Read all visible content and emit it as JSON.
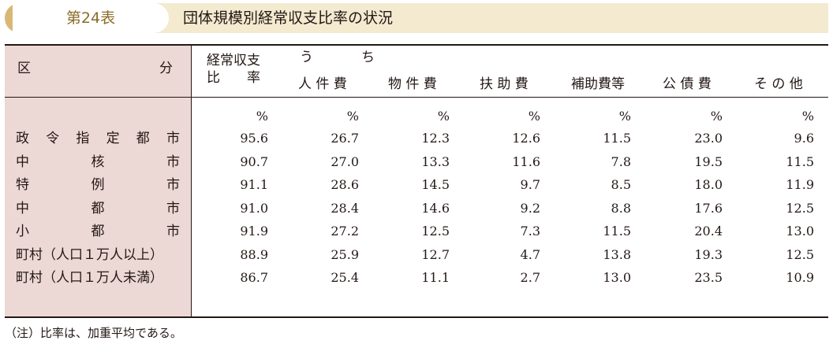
{
  "title": {
    "table_no": "第24表",
    "text": "団体規模別経常収支比率の状況"
  },
  "header": {
    "ku": "区",
    "bun": "分",
    "ratio_line1": "経常収支",
    "ratio_line2_a": "比",
    "ratio_line2_b": "率",
    "uchi_a": "う",
    "uchi_b": "ち",
    "columns": [
      "人 件 費",
      "物 件 費",
      "扶 助 費",
      "補助費等",
      "公 債 費",
      "そ の 他"
    ]
  },
  "unit": "%",
  "rows": [
    {
      "label": [
        "政",
        "令",
        "指",
        "定",
        "都",
        "市"
      ],
      "values": [
        "95.6",
        "26.7",
        "12.3",
        "12.6",
        "11.5",
        "23.0",
        "9.6"
      ]
    },
    {
      "label": [
        "中",
        "核",
        "市"
      ],
      "values": [
        "90.7",
        "27.0",
        "13.3",
        "11.6",
        "7.8",
        "19.5",
        "11.5"
      ]
    },
    {
      "label": [
        "特",
        "例",
        "市"
      ],
      "values": [
        "91.1",
        "28.6",
        "14.5",
        "9.7",
        "8.5",
        "18.0",
        "11.9"
      ]
    },
    {
      "label": [
        "中",
        "都",
        "市"
      ],
      "values": [
        "91.0",
        "28.4",
        "14.6",
        "9.2",
        "8.8",
        "17.6",
        "12.5"
      ]
    },
    {
      "label": [
        "小",
        "都",
        "市"
      ],
      "values": [
        "91.9",
        "27.2",
        "12.5",
        "7.3",
        "11.5",
        "20.4",
        "13.0"
      ]
    },
    {
      "label": [
        "町村（人口１万人以上）"
      ],
      "values": [
        "88.9",
        "25.9",
        "12.7",
        "4.7",
        "13.8",
        "19.3",
        "12.5"
      ]
    },
    {
      "label": [
        "町村（人口１万人未満）"
      ],
      "values": [
        "86.7",
        "25.4",
        "11.1",
        "2.7",
        "13.0",
        "23.5",
        "10.9"
      ]
    }
  ],
  "note": "（注）比率は、加重平均である。",
  "colors": {
    "title_bg": "#f3ead0",
    "title_accent": "#d9b877",
    "table_no_text": "#8a6d2a",
    "label_shade": "#ecd8d4"
  }
}
